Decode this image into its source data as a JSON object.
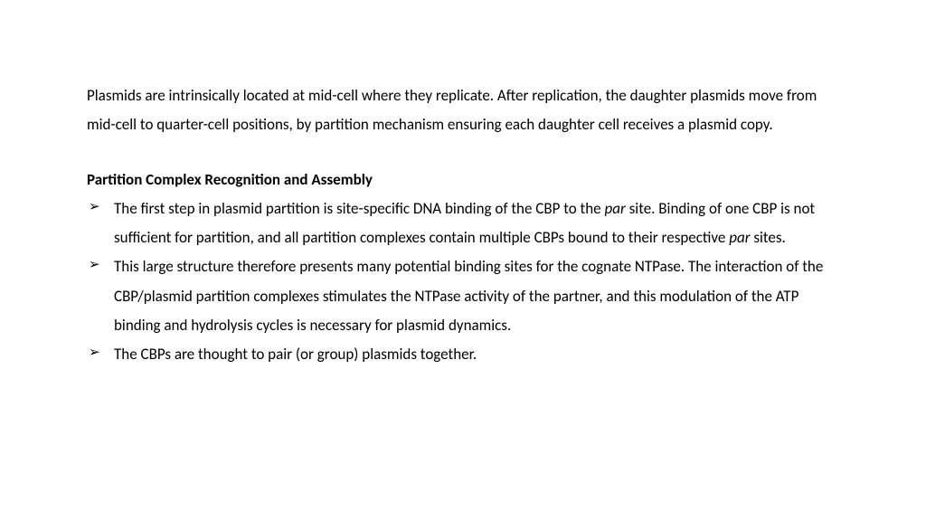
{
  "colors": {
    "background": "#ffffff",
    "text": "#000000"
  },
  "typography": {
    "font_family": "Calibri, 'Segoe UI', Arial, sans-serif",
    "body_fontsize": 17,
    "line_height": 1.9
  },
  "intro": {
    "text": "Plasmids are intrinsically located at mid-cell where they replicate. After replication, the daughter plasmids move from mid-cell to quarter-cell positions, by partition mechanism ensuring each daughter cell receives a plasmid copy."
  },
  "section": {
    "heading": "Partition Complex Recognition and Assembly",
    "bullets": [
      {
        "pre1": "The first step in plasmid partition is site-specific DNA binding of the CBP to the ",
        "em1": "par",
        "mid1": " site.  Binding of one CBP is not sufficient for partition, and all partition complexes contain multiple CBPs bound to their respective ",
        "em2": "par",
        "post1": " sites."
      },
      {
        "pre1": "This large structure therefore presents many potential binding sites for the cognate NTPase. The interaction of the CBP/plasmid partition complexes stimulates the NTPase activity of the partner, and this modulation of the ATP binding and hydrolysis cycles is necessary for plasmid dynamics.",
        "em1": "",
        "mid1": "",
        "em2": "",
        "post1": ""
      },
      {
        "pre1": "The CBPs are thought to pair (or group) plasmids together.",
        "em1": "",
        "mid1": "",
        "em2": "",
        "post1": ""
      }
    ]
  }
}
